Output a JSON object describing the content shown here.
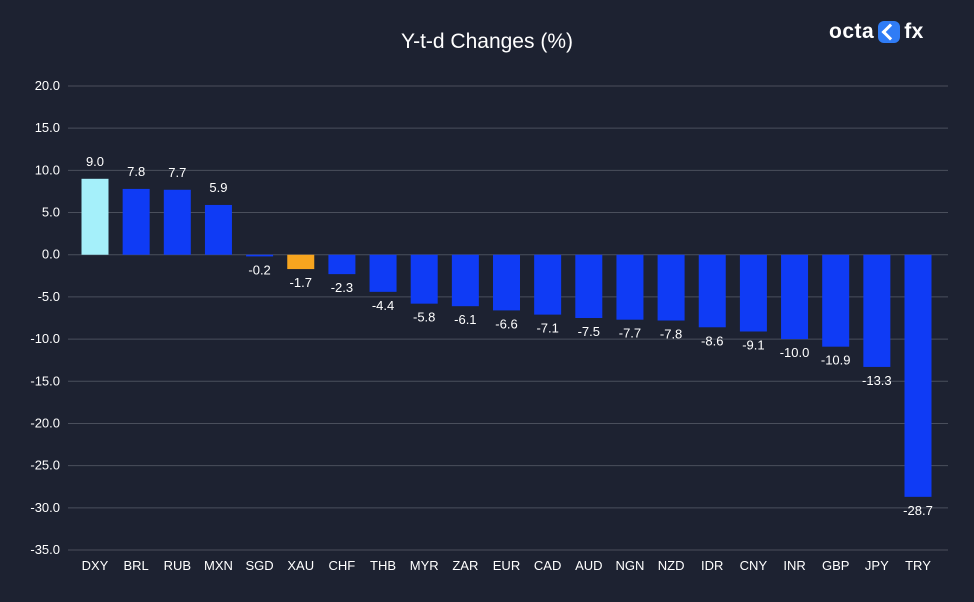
{
  "logo": {
    "left": "octa",
    "right": "fx"
  },
  "chart_data": {
    "type": "bar",
    "title": "Y-t-d Changes (%)",
    "xlabel": "",
    "ylabel": "",
    "ylim": [
      -35,
      20
    ],
    "yticks": [
      20,
      15,
      10,
      5,
      0,
      -5,
      -10,
      -15,
      -20,
      -25,
      -30,
      -35
    ],
    "ytick_labels": [
      "20.0",
      "15.0",
      "10.0",
      "5.0",
      "0.0",
      "-5.0",
      "-10.0",
      "-15.0",
      "-20.0",
      "-25.0",
      "-30.0",
      "-35.0"
    ],
    "grid": true,
    "categories": [
      "DXY",
      "BRL",
      "RUB",
      "MXN",
      "SGD",
      "XAU",
      "CHF",
      "THB",
      "MYR",
      "ZAR",
      "EUR",
      "CAD",
      "AUD",
      "NGN",
      "NZD",
      "IDR",
      "CNY",
      "INR",
      "GBP",
      "JPY",
      "TRY"
    ],
    "values": [
      9.0,
      7.8,
      7.7,
      5.9,
      -0.2,
      -1.7,
      -2.3,
      -4.4,
      -5.8,
      -6.1,
      -6.6,
      -7.1,
      -7.5,
      -7.7,
      -7.8,
      -8.6,
      -9.1,
      -10.0,
      -10.9,
      -13.3,
      -28.7
    ],
    "value_labels": [
      "9.0",
      "7.8",
      "7.7",
      "5.9",
      "-0.2",
      "-1.7",
      "-2.3",
      "-4.4",
      "-5.8",
      "-6.1",
      "-6.6",
      "-7.1",
      "-7.5",
      "-7.7",
      "-7.8",
      "-8.6",
      "-9.1",
      "-10.0",
      "-10.9",
      "-13.3",
      "-28.7"
    ],
    "colors": [
      "#a5f0fa",
      "#0f3bf5",
      "#0f3bf5",
      "#0f3bf5",
      "#0f3bf5",
      "#f7a51f",
      "#0f3bf5",
      "#0f3bf5",
      "#0f3bf5",
      "#0f3bf5",
      "#0f3bf5",
      "#0f3bf5",
      "#0f3bf5",
      "#0f3bf5",
      "#0f3bf5",
      "#0f3bf5",
      "#0f3bf5",
      "#0f3bf5",
      "#0f3bf5",
      "#0f3bf5",
      "#0f3bf5"
    ],
    "gridline_color": "#4a4f5c"
  }
}
